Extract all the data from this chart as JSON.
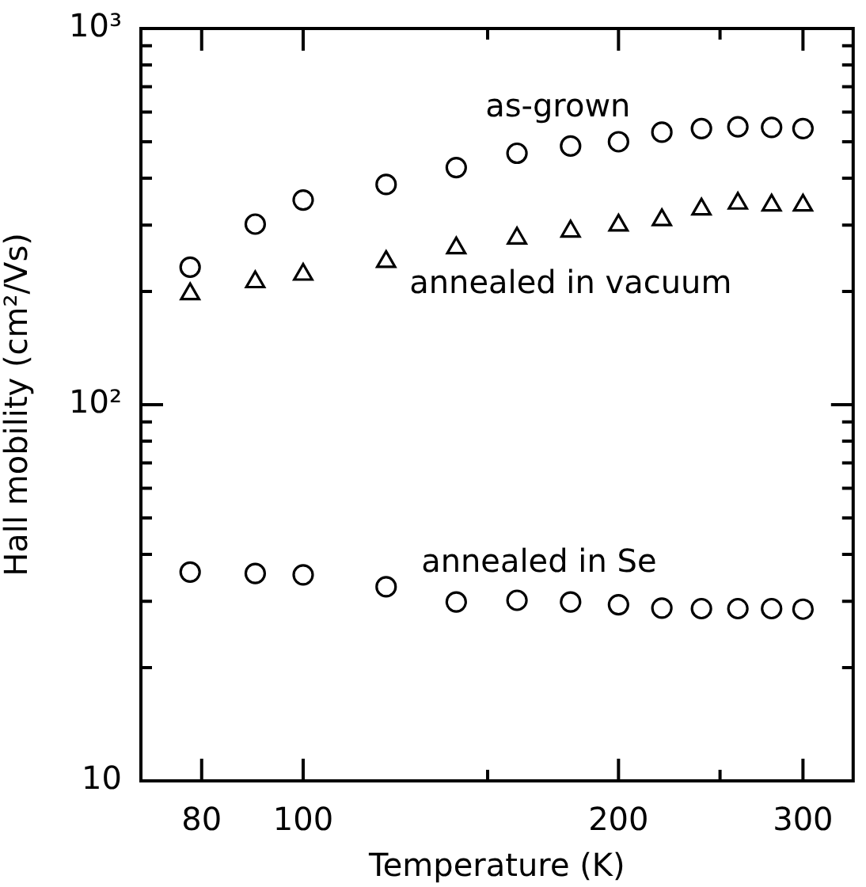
{
  "chart_data": {
    "type": "scatter",
    "xlabel": "Temperature (K)",
    "ylabel": "Hall mobility (cm²/Vs)",
    "log": "xy",
    "grid": false,
    "xlim": [
      70,
      335
    ],
    "xticks": [
      80,
      100,
      {
        "value": 150,
        "label": null
      },
      200,
      {
        "value": 250,
        "label": null
      },
      300
    ],
    "ylim": [
      10,
      1000
    ],
    "yticks": [
      {
        "value": 10,
        "label": "10"
      },
      {
        "value": 20,
        "label": null
      },
      {
        "value": 30,
        "label": null
      },
      {
        "value": 40,
        "label": null
      },
      {
        "value": 50,
        "label": null
      },
      {
        "value": 60,
        "label": null
      },
      {
        "value": 70,
        "label": null
      },
      {
        "value": 80,
        "label": null
      },
      {
        "value": 90,
        "label": null
      },
      {
        "value": 100,
        "label": "10²"
      },
      {
        "value": 200,
        "label": null
      },
      {
        "value": 300,
        "label": null
      },
      {
        "value": 400,
        "label": null
      },
      {
        "value": 500,
        "label": null
      },
      {
        "value": 600,
        "label": null
      },
      {
        "value": 700,
        "label": null
      },
      {
        "value": 800,
        "label": null
      },
      {
        "value": 900,
        "label": null
      },
      {
        "value": 1000,
        "label": "10³"
      }
    ],
    "x": [
      78,
      90,
      100,
      120,
      140,
      160,
      180,
      200,
      220,
      240,
      260,
      280,
      300
    ],
    "series": [
      {
        "name": "as-grown",
        "color": "#000000",
        "marker": "circle",
        "values": [
          232,
          302,
          350,
          385,
          427,
          466,
          487,
          500,
          530,
          542,
          548,
          546,
          542
        ]
      },
      {
        "name": "annealed in vacuum",
        "color": "#000000",
        "marker": "triangle",
        "values": [
          197,
          212,
          222,
          240,
          261,
          277,
          289,
          300,
          310,
          331,
          343,
          339,
          339
        ]
      },
      {
        "name": "annealed in Se",
        "color": "#000000",
        "marker": "circle",
        "values": [
          35.9,
          35.6,
          35.3,
          32.8,
          29.9,
          30.2,
          29.9,
          29.4,
          28.8,
          28.7,
          28.7,
          28.7,
          28.6
        ]
      }
    ]
  }
}
